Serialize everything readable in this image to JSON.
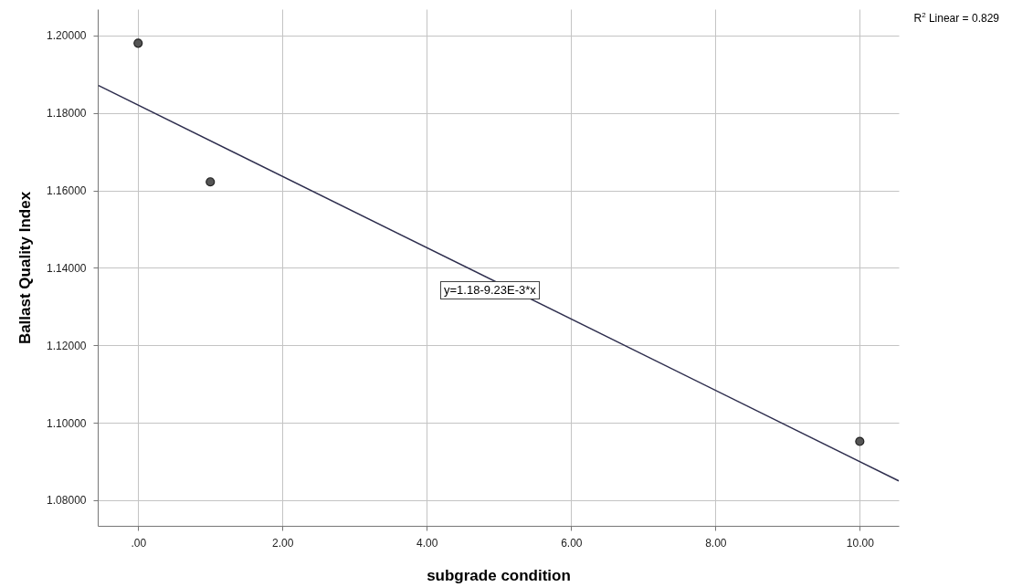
{
  "chart_data": {
    "type": "scatter",
    "xlabel": "subgrade condition",
    "ylabel": "Ballast Quality Index",
    "series": [
      {
        "color": "#555555",
        "marker": "circle",
        "x": [
          0,
          1,
          10
        ],
        "values": [
          1.198,
          1.1622,
          1.0952
        ]
      },
      {
        "type": "line",
        "color": "#2e2e4e",
        "x": [
          -0.55,
          10.54
        ],
        "values": [
          1.1871,
          1.085
        ]
      }
    ],
    "xlim": [
      -0.56,
      10.54
    ],
    "ylim": [
      1.0734,
      1.2068
    ],
    "xticks": [
      {
        "value": 0,
        "label": ".00"
      },
      {
        "value": 2,
        "label": "2.00"
      },
      {
        "value": 4,
        "label": "4.00"
      },
      {
        "value": 6,
        "label": "6.00"
      },
      {
        "value": 8,
        "label": "8.00"
      },
      {
        "value": 10,
        "label": "10.00"
      }
    ],
    "yticks": [
      {
        "value": 1.08,
        "label": "1.08000"
      },
      {
        "value": 1.1,
        "label": "1.10000"
      },
      {
        "value": 1.12,
        "label": "1.12000"
      },
      {
        "value": 1.14,
        "label": "1.14000"
      },
      {
        "value": 1.16,
        "label": "1.16000"
      },
      {
        "value": 1.18,
        "label": "1.18000"
      },
      {
        "value": 1.2,
        "label": "1.20000"
      }
    ],
    "grid": true,
    "annotations": [
      "R$^{2}$ Linear = 0.829",
      "y=1.18-9.23E-3*x"
    ]
  }
}
